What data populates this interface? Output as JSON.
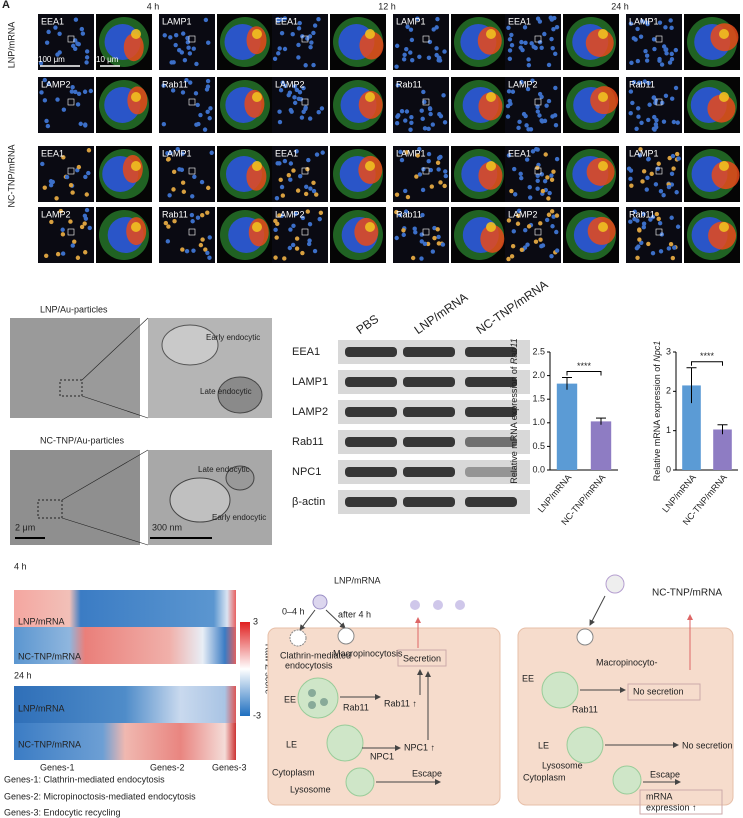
{
  "panel_label": "A",
  "microscopy": {
    "times": [
      "4 h",
      "12 h",
      "24 h"
    ],
    "groups": [
      "LNP/mRNA",
      "NC-TNP/mRNA"
    ],
    "markers": [
      "EEA1",
      "LAMP1",
      "LAMP2",
      "Rab11"
    ],
    "scale_bars": [
      "100 μm",
      "10 μm"
    ]
  },
  "tem": {
    "rows": [
      {
        "title": "LNP/Au-particles",
        "labels": [
          "Early endocytic",
          "Late endocytic"
        ]
      },
      {
        "title": "NC-TNP/Au-particles",
        "labels": [
          "Late endocytic",
          "Early endocytic"
        ]
      }
    ],
    "scale_bars": [
      "2 μm",
      "300 nm"
    ]
  },
  "western": {
    "lanes": [
      "PBS",
      "LNP/mRNA",
      "NC-TNP/mRNA"
    ],
    "proteins": [
      "EEA1",
      "LAMP1",
      "LAMP2",
      "Rab11",
      "NPC1",
      "β-actin"
    ]
  },
  "charts": [
    {
      "type": "bar",
      "ylabel": "Relative mRNA expression of",
      "gene": "Rab11",
      "categories": [
        "LNP/mRNA",
        "NC-TNP/mRNA"
      ],
      "values": [
        1.83,
        1.03
      ],
      "errors": [
        0.13,
        0.07
      ],
      "colors": [
        "#5b9bd5",
        "#8e7cc3"
      ],
      "ylim": [
        0,
        2.5
      ],
      "yticks": [
        {
          "value": 0,
          "label": "0.0"
        },
        {
          "value": 0.5,
          "label": "0.5"
        },
        {
          "value": 1,
          "label": "1.0"
        },
        {
          "value": 1.5,
          "label": "1.5"
        },
        {
          "value": 2,
          "label": "2.0"
        },
        {
          "value": 2.5,
          "label": "2.5"
        }
      ],
      "significance": "****"
    },
    {
      "type": "bar",
      "ylabel": "Relative mRNA expression of",
      "gene": "Npc1",
      "categories": [
        "LNP/mRNA",
        "NC-TNP/mRNA"
      ],
      "values": [
        2.15,
        1.03
      ],
      "errors": [
        0.45,
        0.12
      ],
      "colors": [
        "#5b9bd5",
        "#8e7cc3"
      ],
      "ylim": [
        0,
        3
      ],
      "yticks": [
        0,
        1,
        2,
        3
      ],
      "significance": "****"
    }
  ],
  "heatmap": {
    "blocks": [
      {
        "title": "4 h",
        "rows": [
          "LNP/mRNA",
          "NC-TNP/mRNA"
        ]
      },
      {
        "title": "24 h",
        "rows": [
          "LNP/mRNA",
          "NC-TNP/mRNA"
        ]
      }
    ],
    "colorbar": {
      "label": "Raw Z score",
      "ticks": [
        3,
        -3
      ]
    },
    "gene_groups": [
      "Genes-1",
      "Genes-2",
      "Genes-3"
    ],
    "legend": [
      "Genes-1: Clathrin-mediated endocytosis",
      "Genes-2: Micropinoctosis-mediated endocytosis",
      "Genes-3: Endocytic recycling"
    ]
  },
  "diagram_lnp": {
    "title": "LNP/mRNA",
    "early": "0–4 h",
    "late": "after 4 h",
    "clathrin": [
      "Clathrin-mediated",
      "endocytosis"
    ],
    "macro": "Macropinocytosis",
    "secretion": "Secretion",
    "ee": "EE",
    "rab11": "Rab11",
    "rab11_up": "Rab11 ↑",
    "le": "LE",
    "npc1": "NPC1",
    "npc1_up": "NPC1 ↑",
    "cytoplasm": "Cytoplasm",
    "lysosome": "Lysosome",
    "escape": "Escape"
  },
  "diagram_nc": {
    "title": "NC-TNP/mRNA",
    "ee": "EE",
    "macro": "Macropinocyto-",
    "rab11": "Rab11",
    "no_secretion": [
      "No secretion",
      "No secretion"
    ],
    "le": "LE",
    "lysosome": "Lysosome",
    "cytoplasm": "Cytoplasm",
    "escape": "Escape",
    "expression": [
      "mRNA",
      "expression ↑"
    ]
  }
}
